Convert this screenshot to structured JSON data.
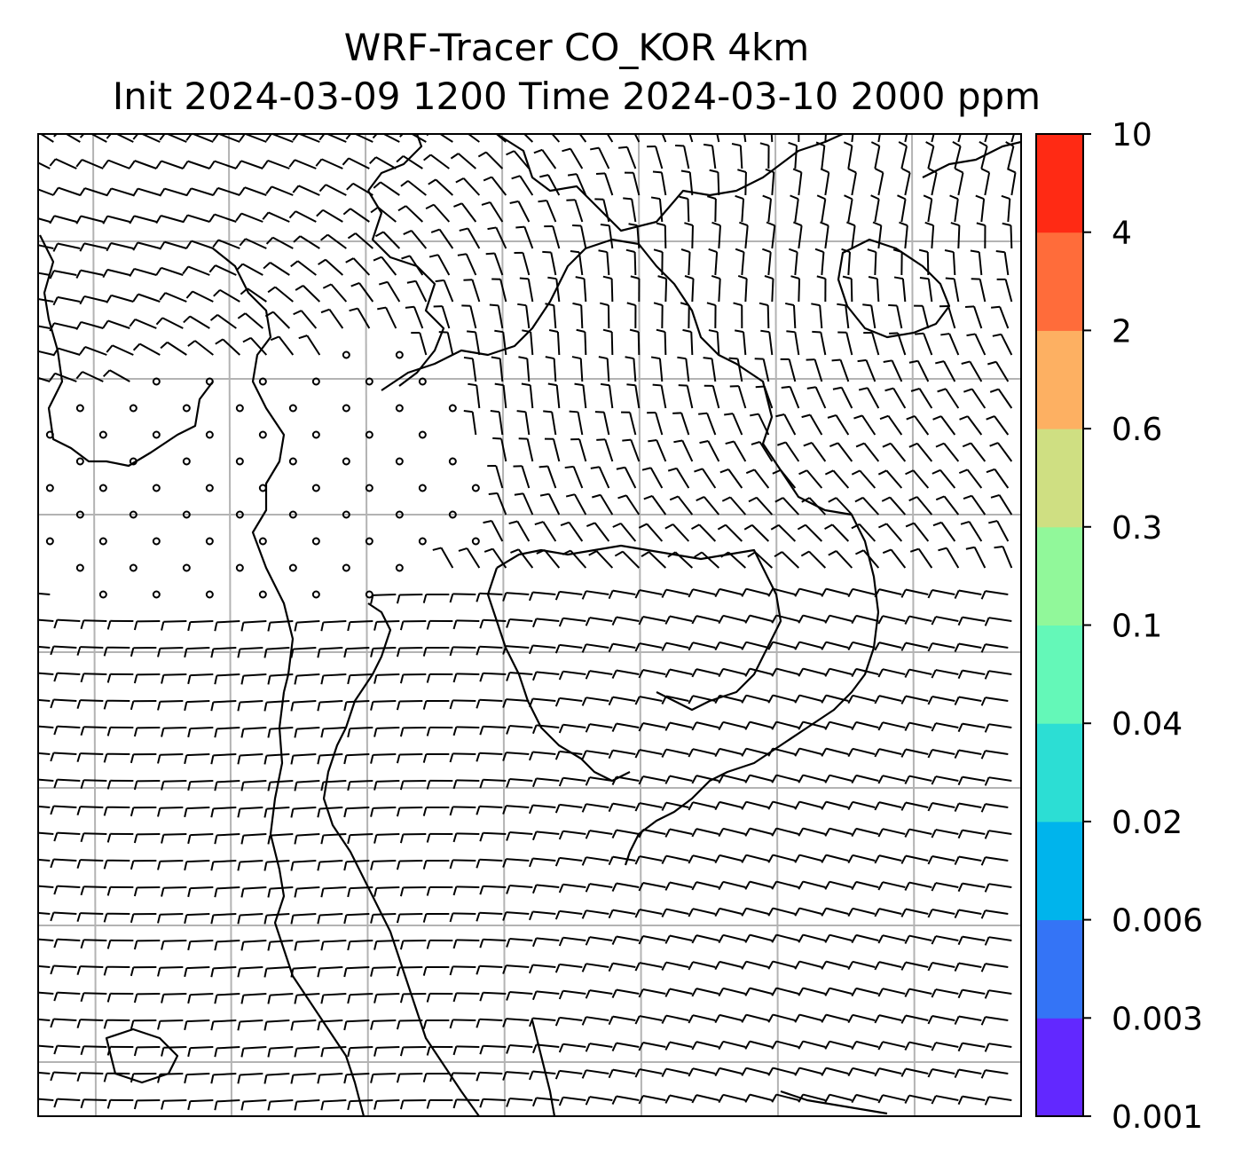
{
  "title_line1": "WRF-Tracer CO_KOR 4km",
  "title_line2": "Init 2024-03-09 1200 Time 2024-03-10 2000 ppm",
  "colorbar": {
    "levels": [
      "0.001",
      "0.003",
      "0.006",
      "0.02",
      "0.04",
      "0.1",
      "0.3",
      "0.6",
      "2",
      "4",
      "10"
    ],
    "colors": [
      "#6228ff",
      "#3474f6",
      "#00b4ec",
      "#2cded4",
      "#64f8b8",
      "#91f89a",
      "#cfdf82",
      "#fdb062",
      "#ff6c3a",
      "#ff2a14"
    ]
  },
  "map": {
    "wind_barb_color": "#000000",
    "gridline_color": "#b3b3b3",
    "coastline_color": "#000000"
  }
}
